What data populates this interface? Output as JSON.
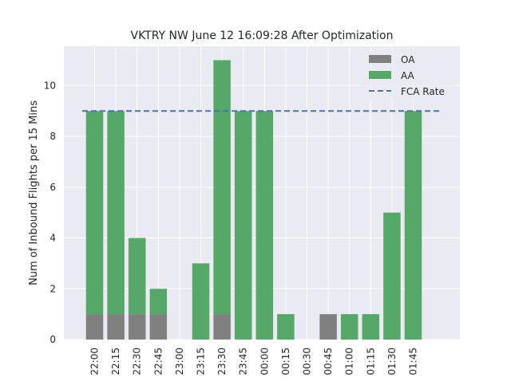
{
  "chart_data": {
    "type": "bar",
    "stacked": true,
    "title": "VKTRY NW June 12 16:09:28 After Optimization",
    "xlabel": "",
    "ylabel": "Num of Inbound Flights per 15 Mins",
    "ylim": [
      0,
      11.55
    ],
    "yticks": [
      0,
      2,
      4,
      6,
      8,
      10
    ],
    "grid": true,
    "legend_position": "top-right",
    "categories": [
      "22:00",
      "22:15",
      "22:30",
      "22:45",
      "23:00",
      "23:15",
      "23:30",
      "23:45",
      "00:00",
      "00:15",
      "00:30",
      "00:45",
      "01:00",
      "01:15",
      "01:30",
      "01:45"
    ],
    "series": [
      {
        "name": "OA",
        "color": "#808080",
        "values": [
          1,
          1,
          1,
          1,
          0,
          0,
          1,
          0,
          0,
          0,
          0,
          1,
          0,
          0,
          0,
          0
        ]
      },
      {
        "name": "AA",
        "color": "#55a868",
        "values": [
          8,
          8,
          3,
          1,
          0,
          3,
          10,
          9,
          9,
          1,
          0,
          0,
          1,
          1,
          5,
          9
        ]
      }
    ],
    "reference_line": {
      "name": "FCA Rate",
      "value": 9,
      "color": "#4c72b0",
      "style": "dashed"
    }
  }
}
